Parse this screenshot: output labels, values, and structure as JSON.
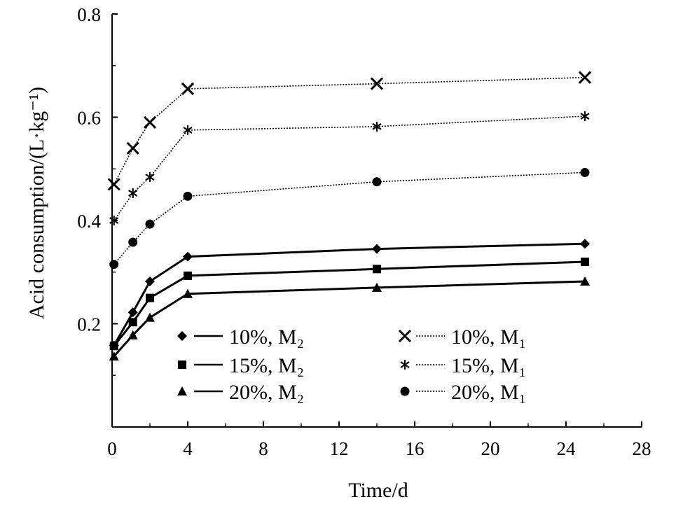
{
  "chart_data": {
    "type": "line",
    "xlabel": "Time/d",
    "ylabel": "Acid consumption/(L·kg⁻¹)",
    "xlim": [
      0,
      28
    ],
    "ylim": [
      0.0,
      0.8
    ],
    "xticks": [
      0,
      4,
      8,
      12,
      16,
      20,
      24,
      28
    ],
    "xtick_labels": [
      "0",
      "4",
      "8",
      "12",
      "16",
      "20",
      "24",
      "28"
    ],
    "yticks": [
      0.2,
      0.4,
      0.6,
      0.8
    ],
    "ytick_labels": [
      "0.2",
      "0.4",
      "0.6",
      "0.8"
    ],
    "grid": false,
    "legend_placement": "bottom",
    "series": [
      {
        "name": "10%, M₂",
        "marker": "diamond",
        "line": "solid",
        "x": [
          0.1,
          1.1,
          2.0,
          4.0,
          14.0,
          25.0
        ],
        "y": [
          0.158,
          0.222,
          0.282,
          0.33,
          0.345,
          0.355
        ]
      },
      {
        "name": "15%, M₂",
        "marker": "square",
        "line": "solid",
        "x": [
          0.1,
          1.1,
          2.0,
          4.0,
          14.0,
          25.0
        ],
        "y": [
          0.157,
          0.203,
          0.25,
          0.293,
          0.306,
          0.32
        ]
      },
      {
        "name": "20%, M₂",
        "marker": "triangle",
        "line": "solid",
        "x": [
          0.1,
          1.1,
          2.0,
          4.0,
          14.0,
          25.0
        ],
        "y": [
          0.137,
          0.178,
          0.212,
          0.258,
          0.27,
          0.282
        ]
      },
      {
        "name": "10%, M₁",
        "marker": "x",
        "line": "dotted",
        "x": [
          0.1,
          1.1,
          2.0,
          4.0,
          14.0,
          25.0
        ],
        "y": [
          0.47,
          0.54,
          0.59,
          0.655,
          0.665,
          0.677
        ]
      },
      {
        "name": "15%, M₁",
        "marker": "asterisk",
        "line": "dotted",
        "x": [
          0.1,
          1.1,
          2.0,
          4.0,
          14.0,
          25.0
        ],
        "y": [
          0.4,
          0.453,
          0.484,
          0.575,
          0.582,
          0.602
        ]
      },
      {
        "name": "20%, M₁",
        "marker": "circle",
        "line": "dotted",
        "x": [
          0.1,
          1.1,
          2.0,
          4.0,
          14.0,
          25.0
        ],
        "y": [
          0.315,
          0.358,
          0.393,
          0.447,
          0.475,
          0.493
        ]
      }
    ]
  }
}
